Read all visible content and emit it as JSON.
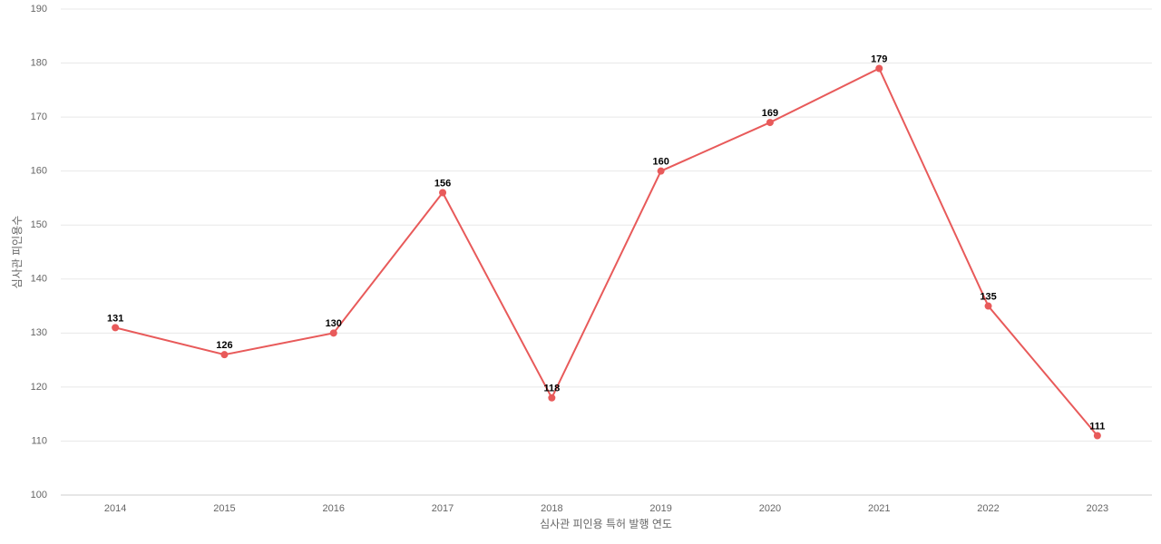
{
  "chart_data": {
    "type": "line",
    "x_label": "심사관 피인용 특허 발행 연도",
    "y_label": "심사관 피인용수",
    "categories": [
      "2014",
      "2015",
      "2016",
      "2017",
      "2018",
      "2019",
      "2020",
      "2021",
      "2022",
      "2023"
    ],
    "series": [
      {
        "color": "#e85a5a",
        "values": [
          131,
          126,
          130,
          156,
          118,
          160,
          169,
          179,
          135,
          111
        ]
      }
    ],
    "ylim": [
      100,
      190
    ],
    "yticks": [
      100,
      110,
      120,
      130,
      140,
      150,
      160,
      170,
      180,
      190
    ],
    "grid": true
  }
}
